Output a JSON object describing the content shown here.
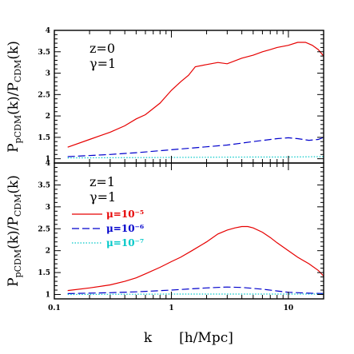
{
  "colors": {
    "mu_1e-5": "#e60000",
    "mu_1e-6": "#0000cc",
    "mu_1e-7": "#00c8c8",
    "axis": "#000000"
  },
  "chart_data": [
    {
      "type": "line",
      "panel": "top",
      "annotation": {
        "z": "z=0",
        "gamma": "γ=1"
      },
      "ylabel": {
        "main": "P",
        "sub1": "pCDM",
        "mid": "(k)/P",
        "sub2": "CDM",
        "end": "(k)"
      },
      "xscale": "log",
      "xlim": [
        0.1,
        20
      ],
      "ylim": [
        0.9,
        4
      ],
      "yticks": [
        "1",
        "1.5",
        "2",
        "2.5",
        "3",
        "3.5",
        "4"
      ],
      "series": [
        {
          "name": "μ=10⁻⁵",
          "style": "solid",
          "x": [
            0.13,
            0.2,
            0.3,
            0.4,
            0.5,
            0.6,
            0.8,
            1.0,
            1.2,
            1.4,
            1.6,
            2.0,
            2.5,
            3.0,
            4.0,
            5.0,
            6.0,
            7.0,
            8.0,
            10.0,
            12.0,
            14.0,
            16.0,
            18.0,
            20.0
          ],
          "y": [
            1.27,
            1.45,
            1.62,
            1.77,
            1.93,
            2.03,
            2.3,
            2.6,
            2.8,
            2.95,
            3.15,
            3.2,
            3.25,
            3.22,
            3.35,
            3.42,
            3.5,
            3.55,
            3.6,
            3.65,
            3.72,
            3.72,
            3.65,
            3.55,
            3.4
          ]
        },
        {
          "name": "μ=10⁻⁶",
          "style": "dashed",
          "x": [
            0.13,
            0.3,
            0.5,
            1.0,
            2.0,
            3.0,
            5.0,
            8.0,
            10.0,
            12.0,
            15.0,
            18.0,
            20.0
          ],
          "y": [
            1.05,
            1.1,
            1.14,
            1.21,
            1.28,
            1.32,
            1.4,
            1.47,
            1.49,
            1.47,
            1.43,
            1.45,
            1.5
          ]
        },
        {
          "name": "μ=10⁻⁷",
          "style": "dotted",
          "x": [
            0.13,
            1.0,
            5.0,
            10.0,
            20.0
          ],
          "y": [
            1.02,
            1.03,
            1.04,
            1.04,
            1.05
          ]
        }
      ]
    },
    {
      "type": "line",
      "panel": "bottom",
      "annotation": {
        "z": "z=1",
        "gamma": "γ=1"
      },
      "ylabel": {
        "main": "P",
        "sub1": "pCDM",
        "mid": "(k)/P",
        "sub2": "CDM",
        "end": "(k)"
      },
      "xlabel": {
        "k": "k",
        "unit": "[h/Mpc]"
      },
      "xscale": "log",
      "xlim": [
        0.1,
        20
      ],
      "ylim": [
        0.9,
        4
      ],
      "yticks": [
        "1",
        "1.5",
        "2",
        "2.5",
        "3",
        "3.5",
        "4"
      ],
      "xticks": [
        {
          "value": 0.1,
          "label": "0.1"
        },
        {
          "value": 1,
          "label": "1"
        },
        {
          "value": 10,
          "label": "10"
        }
      ],
      "legend": {
        "placement": "center-left",
        "entries": [
          {
            "label": "μ=10⁻⁵",
            "style": "solid",
            "color": "#e60000"
          },
          {
            "label": "μ=10⁻⁶",
            "style": "dashed",
            "color": "#0000cc"
          },
          {
            "label": "μ=10⁻⁷",
            "style": "dotted",
            "color": "#00c8c8"
          }
        ]
      },
      "series": [
        {
          "name": "μ=10⁻⁵",
          "style": "solid",
          "x": [
            0.13,
            0.2,
            0.3,
            0.4,
            0.5,
            0.6,
            0.8,
            1.0,
            1.2,
            1.5,
            2.0,
            2.5,
            3.0,
            3.5,
            4.0,
            4.5,
            5.0,
            6.0,
            7.0,
            8.0,
            10.0,
            12.0,
            15.0,
            18.0,
            20.0
          ],
          "y": [
            1.09,
            1.15,
            1.22,
            1.3,
            1.38,
            1.47,
            1.62,
            1.75,
            1.85,
            2.0,
            2.2,
            2.38,
            2.47,
            2.52,
            2.55,
            2.55,
            2.52,
            2.42,
            2.3,
            2.18,
            2.0,
            1.85,
            1.7,
            1.55,
            1.42
          ]
        },
        {
          "name": "μ=10⁻⁶",
          "style": "dashed",
          "x": [
            0.13,
            0.3,
            0.5,
            1.0,
            2.0,
            3.0,
            4.0,
            6.0,
            8.0,
            10.0,
            15.0,
            20.0
          ],
          "y": [
            1.02,
            1.04,
            1.06,
            1.1,
            1.15,
            1.17,
            1.16,
            1.12,
            1.08,
            1.05,
            1.03,
            1.02
          ]
        },
        {
          "name": "μ=10⁻⁷",
          "style": "dotted",
          "x": [
            0.13,
            1.0,
            5.0,
            10.0,
            20.0
          ],
          "y": [
            1.0,
            1.01,
            1.01,
            1.01,
            1.01
          ]
        }
      ]
    }
  ]
}
